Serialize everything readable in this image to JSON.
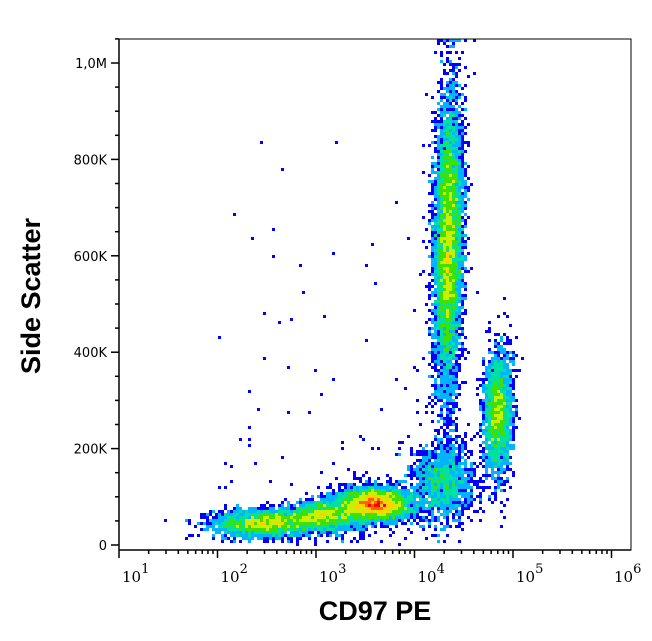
{
  "chart_data": {
    "type": "scatter",
    "subtype": "density-dot-plot",
    "xlabel": "CD97 PE",
    "ylabel": "Side Scatter",
    "x_scale": "log",
    "xlim": [
      10,
      1600000
    ],
    "ylim": [
      -10000,
      1050000
    ],
    "x_ticks": [
      {
        "value": 10,
        "base": "10",
        "exp": "1"
      },
      {
        "value": 100,
        "base": "10",
        "exp": "2"
      },
      {
        "value": 1000,
        "base": "10",
        "exp": "3"
      },
      {
        "value": 10000,
        "base": "10",
        "exp": "4"
      },
      {
        "value": 100000,
        "base": "10",
        "exp": "5"
      },
      {
        "value": 1000000,
        "base": "10",
        "exp": "6"
      }
    ],
    "y_ticks": [
      {
        "value": 0,
        "label": "0"
      },
      {
        "value": 200000,
        "label": "200K"
      },
      {
        "value": 400000,
        "label": "400K"
      },
      {
        "value": 600000,
        "label": "600K"
      },
      {
        "value": 800000,
        "label": "800K"
      },
      {
        "value": 1000000,
        "label": "1,0M"
      }
    ],
    "grid": false,
    "legend": "none",
    "colormap": [
      "#0000ff",
      "#00b4ff",
      "#00e0a0",
      "#40e000",
      "#c8f000",
      "#ffd000",
      "#ff6000",
      "#ff0000"
    ],
    "populations": [
      {
        "x_center": 300,
        "x_sd_decades": 0.25,
        "y_center": 45000,
        "y_sd": 14000,
        "events": 2500
      },
      {
        "x_center": 1200,
        "x_sd_decades": 0.2,
        "y_center": 60000,
        "y_sd": 15000,
        "events": 2000
      },
      {
        "x_center": 4000,
        "x_sd_decades": 0.18,
        "y_center": 85000,
        "y_sd": 17000,
        "events": 4000
      },
      {
        "x_center": 20000,
        "x_sd_decades": 0.15,
        "y_center": 130000,
        "y_sd": 40000,
        "events": 1500
      },
      {
        "x_center": 22000,
        "x_sd_decades": 0.07,
        "y_center": 620000,
        "y_sd": 150000,
        "events": 7000
      },
      {
        "x_center": 70000,
        "x_sd_decades": 0.07,
        "y_center": 270000,
        "y_sd": 65000,
        "events": 2500
      }
    ],
    "background_events": 150
  }
}
